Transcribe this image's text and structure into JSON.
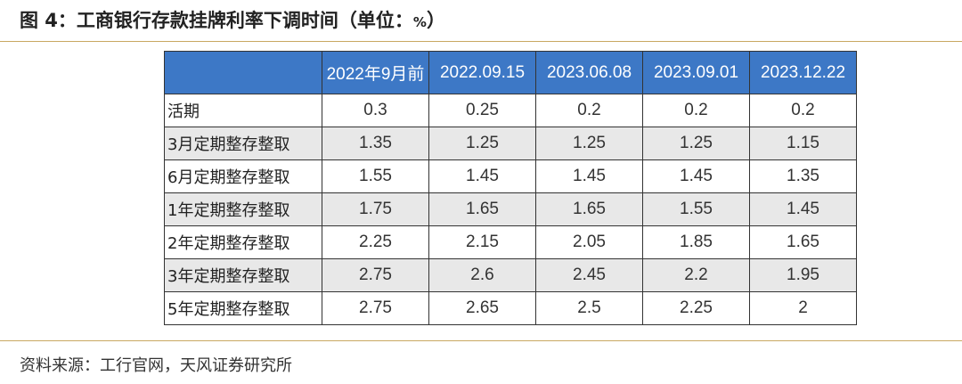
{
  "figure": {
    "title": "图 4：工商银行存款挂牌利率下调时间（单位：",
    "unit_sign": "%",
    "title_close": "）"
  },
  "table": {
    "header": {
      "corner": "",
      "dates": [
        "2022年9月前",
        "2022.09.15",
        "2023.06.08",
        "2023.09.01",
        "2023.12.22"
      ]
    },
    "rows": [
      {
        "label": "活期",
        "values": [
          "0.3",
          "0.25",
          "0.2",
          "0.2",
          "0.2"
        ]
      },
      {
        "label": "3月定期整存整取",
        "values": [
          "1.35",
          "1.25",
          "1.25",
          "1.25",
          "1.15"
        ]
      },
      {
        "label": "6月定期整存整取",
        "values": [
          "1.55",
          "1.45",
          "1.45",
          "1.45",
          "1.35"
        ]
      },
      {
        "label": "1年定期整存整取",
        "values": [
          "1.75",
          "1.65",
          "1.65",
          "1.55",
          "1.45"
        ]
      },
      {
        "label": "2年定期整存整取",
        "values": [
          "2.25",
          "2.15",
          "2.05",
          "1.85",
          "1.65"
        ]
      },
      {
        "label": "3年定期整存整取",
        "values": [
          "2.75",
          "2.6",
          "2.45",
          "2.2",
          "1.95"
        ]
      },
      {
        "label": "5年定期整存整取",
        "values": [
          "2.75",
          "2.65",
          "2.5",
          "2.25",
          "2"
        ]
      }
    ]
  },
  "source": "资料来源：工行官网，天风证券研究所",
  "colors": {
    "header_bg": "#3d78c6",
    "header_text": "#ffffff",
    "row_shade": "#e8e8e8",
    "rule": "#c9a862"
  }
}
